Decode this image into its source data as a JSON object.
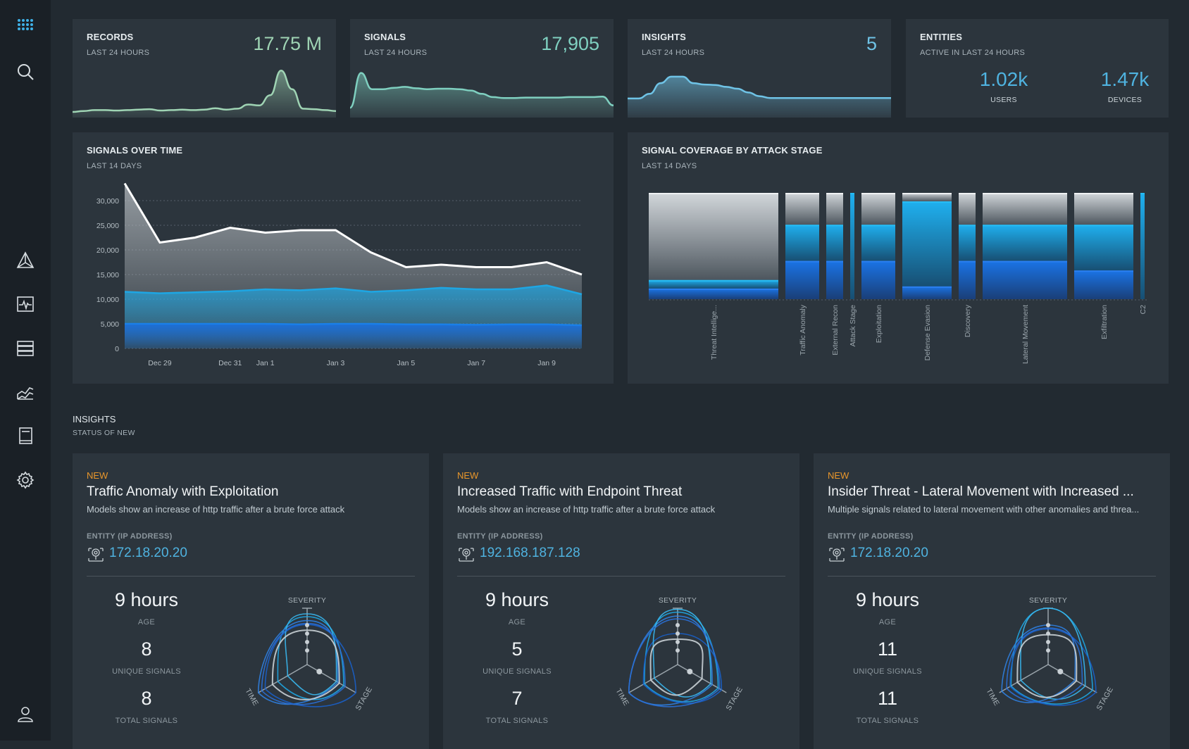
{
  "sidebar": {
    "items": [
      {
        "name": "app-grid-icon"
      },
      {
        "name": "search-icon"
      },
      {
        "name": "triangle-network-icon"
      },
      {
        "name": "pulse-monitor-icon"
      },
      {
        "name": "server-stack-icon"
      },
      {
        "name": "area-chart-icon"
      },
      {
        "name": "notebook-icon"
      },
      {
        "name": "gear-icon"
      },
      {
        "name": "user-icon"
      }
    ]
  },
  "kpis": [
    {
      "title": "RECORDS",
      "subtitle": "LAST 24 HOURS",
      "value": "17.75 M",
      "color": "#9fd4b4",
      "spark": [
        0.06,
        0.08,
        0.1,
        0.1,
        0.09,
        0.1,
        0.11,
        0.12,
        0.09,
        0.1,
        0.11,
        0.1,
        0.11,
        0.14,
        0.11,
        0.13,
        0.22,
        0.2,
        0.42,
        0.95,
        0.55,
        0.13,
        0.12,
        0.1,
        0.08
      ]
    },
    {
      "title": "SIGNALS",
      "subtitle": "LAST 24 HOURS",
      "value": "17,905",
      "color": "#7fd0c0",
      "spark": [
        0.15,
        0.9,
        0.55,
        0.55,
        0.58,
        0.6,
        0.57,
        0.55,
        0.56,
        0.56,
        0.55,
        0.52,
        0.45,
        0.38,
        0.36,
        0.36,
        0.37,
        0.37,
        0.37,
        0.37,
        0.38,
        0.38,
        0.38,
        0.39,
        0.2
      ]
    },
    {
      "title": "INSIGHTS",
      "subtitle": "LAST 24 HOURS",
      "value": "5",
      "color": "#6fc3e6",
      "spark": [
        0.35,
        0.35,
        0.45,
        0.68,
        0.82,
        0.82,
        0.68,
        0.65,
        0.64,
        0.6,
        0.56,
        0.48,
        0.4,
        0.36,
        0.36,
        0.36,
        0.36,
        0.36,
        0.36,
        0.36,
        0.36,
        0.36,
        0.36,
        0.36,
        0.36
      ]
    }
  ],
  "entities": {
    "title": "ENTITIES",
    "subtitle": "ACTIVE IN LAST 24 HOURS",
    "users_value": "1.02k",
    "users_label": "USERS",
    "devices_value": "1.47k",
    "devices_label": "DEVICES"
  },
  "signals_over_time": {
    "title": "SIGNALS OVER TIME",
    "subtitle": "LAST 14 DAYS"
  },
  "coverage": {
    "title": "SIGNAL COVERAGE BY ATTACK STAGE",
    "subtitle": "LAST 14 DAYS"
  },
  "chart_data": [
    {
      "type": "area",
      "title": "SIGNALS OVER TIME",
      "subtitle": "LAST 14 DAYS",
      "ylim": [
        0,
        35000
      ],
      "yticks": [
        0,
        5000,
        10000,
        15000,
        20000,
        25000,
        30000
      ],
      "ytick_labels": [
        "0",
        "5,000",
        "10,000",
        "15,000",
        "20,000",
        "25,000",
        "30,000"
      ],
      "x_index": [
        0,
        1,
        2,
        3,
        4,
        5,
        6,
        7,
        8,
        9,
        10,
        11,
        12,
        13
      ],
      "x_tick_positions": [
        1,
        3,
        4,
        6,
        8,
        10,
        12
      ],
      "x_tick_labels": [
        "Dec 29",
        "Dec 31",
        "Jan 1",
        "Jan 3",
        "Jan 5",
        "Jan 7",
        "Jan 9"
      ],
      "series": [
        {
          "name": "total",
          "color": "#ffffff",
          "values": [
            33500,
            21500,
            22500,
            24500,
            23500,
            24000,
            24000,
            19500,
            16500,
            17000,
            16500,
            16500,
            17500,
            15000
          ]
        },
        {
          "name": "mid",
          "color": "#1ea6e3",
          "values": [
            11500,
            11200,
            11400,
            11600,
            12000,
            11800,
            12200,
            11500,
            11800,
            12300,
            12000,
            12000,
            12800,
            11000
          ]
        },
        {
          "name": "low",
          "color": "#1a7fe8",
          "values": [
            5000,
            5000,
            5000,
            5000,
            5000,
            4900,
            5000,
            5000,
            4900,
            4900,
            4800,
            4900,
            4900,
            4700
          ]
        }
      ]
    },
    {
      "type": "bar",
      "title": "SIGNAL COVERAGE BY ATTACK STAGE",
      "subtitle": "LAST 14 DAYS",
      "categories": [
        "Threat Intellige...",
        "Traffic Anomaly",
        "External Recon",
        "Attack Stage",
        "Exploitation",
        "Defense Evasion",
        "Discovery",
        "Lateral Movement",
        "Exfiltration",
        "C2"
      ],
      "widths": [
        184,
        48,
        24,
        6,
        48,
        70,
        24,
        120,
        84,
        6
      ],
      "series": [
        {
          "name": "gray",
          "color": "#b8bec3",
          "values": [
            0.82,
            0.3,
            0.3,
            0,
            0.3,
            0.08,
            0.3,
            0.3,
            0.3,
            0
          ]
        },
        {
          "name": "light-blue",
          "color": "#1ea6e3",
          "values": [
            0.08,
            0.34,
            0.34,
            1.0,
            0.34,
            0.8,
            0.34,
            0.34,
            0.43,
            1.0
          ]
        },
        {
          "name": "blue",
          "color": "#1a72e0",
          "values": [
            0.1,
            0.36,
            0.36,
            0,
            0.36,
            0.12,
            0.36,
            0.36,
            0.27,
            0
          ]
        }
      ]
    }
  ],
  "insights_section": {
    "title": "INSIGHTS",
    "subtitle": "STATUS OF NEW"
  },
  "insights": [
    {
      "status": "NEW",
      "title": "Traffic Anomaly with Exploitation",
      "description": "Models show an increase of http traffic after a brute force attack",
      "entity_label": "ENTITY (IP ADDRESS)",
      "ip": "172.18.20.20",
      "age_value": "9 hours",
      "age_label": "AGE",
      "unique_value": "8",
      "unique_label": "UNIQUE SIGNALS",
      "total_value": "8",
      "total_label": "TOTAL SIGNALS",
      "radar_severity": "SEVERITY",
      "radar_time": "TIME",
      "radar_stage": "STAGE"
    },
    {
      "status": "NEW",
      "title": "Increased Traffic with Endpoint Threat",
      "description": "Models show an increase of http traffic after a brute force attack",
      "entity_label": "ENTITY (IP ADDRESS)",
      "ip": "192.168.187.128",
      "age_value": "9 hours",
      "age_label": "AGE",
      "unique_value": "5",
      "unique_label": "UNIQUE SIGNALS",
      "total_value": "7",
      "total_label": "TOTAL SIGNALS",
      "radar_severity": "SEVERITY",
      "radar_time": "TIME",
      "radar_stage": "STAGE"
    },
    {
      "status": "NEW",
      "title": "Insider Threat - Lateral Movement with Increased ...",
      "description": "Multiple signals related to lateral movement with other anomalies and threa...",
      "entity_label": "ENTITY (IP ADDRESS)",
      "ip": "172.18.20.20",
      "age_value": "9 hours",
      "age_label": "AGE",
      "unique_value": "11",
      "unique_label": "UNIQUE SIGNALS",
      "total_value": "11",
      "total_label": "TOTAL SIGNALS",
      "radar_severity": "SEVERITY",
      "radar_time": "TIME",
      "radar_stage": "STAGE"
    }
  ]
}
